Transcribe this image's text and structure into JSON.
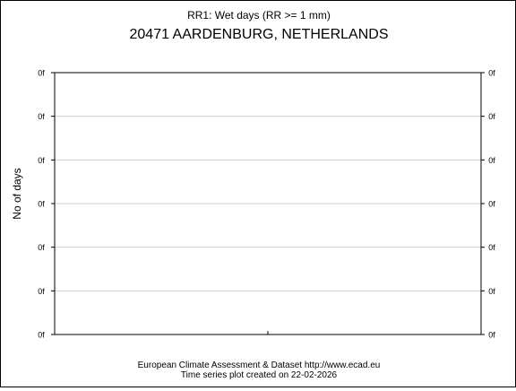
{
  "chart_data": {
    "type": "line",
    "title": "RR1: Wet days (RR >= 1 mm)",
    "subtitle": "20471 AARDENBURG, NETHERLANDS",
    "ylabel": "No of days",
    "xlabel": "",
    "ytick_labels": [
      "0f",
      "0f",
      "0f",
      "0f",
      "0f",
      "0f",
      "0f"
    ],
    "grid": true,
    "series": []
  },
  "footer": {
    "line1": "European Climate Assessment & Dataset  http://www.ecad.eu",
    "line2": "Time series plot created on 22-02-2026"
  }
}
